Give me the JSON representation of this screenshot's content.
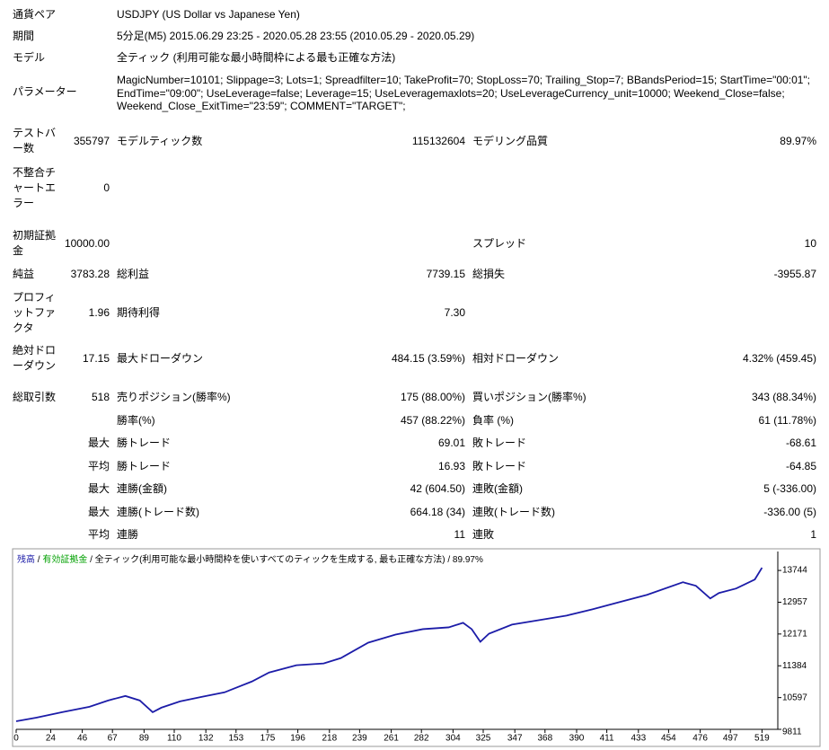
{
  "summary": [
    {
      "label": "通貨ペア",
      "value": "USDJPY (US Dollar vs Japanese Yen)"
    },
    {
      "label": "期間",
      "value": "5分足(M5) 2015.06.29 23:25 - 2020.05.28 23:55 (2010.05.29 - 2020.05.29)"
    },
    {
      "label": "モデル",
      "value": "全ティック (利用可能な最小時間枠による最も正確な方法)"
    },
    {
      "label": "パラメーター",
      "value": "MagicNumber=10101; Slippage=3; Lots=1; Spreadfilter=10; TakeProfit=70; StopLoss=70; Trailing_Stop=7; BBandsPeriod=15; StartTime=\"00:01\"; EndTime=\"09:00\"; UseLeverage=false; Leverage=15; UseLeveragemaxlots=20; UseLeverageCurrency_unit=10000; Weekend_Close=false; Weekend_Close_ExitTime=\"23:59\"; COMMENT=\"TARGET\";"
    }
  ],
  "stats": [
    {
      "label1": "テストバー数",
      "value1": "355797",
      "label2": "モデルティック数",
      "value2": "115132604",
      "label3": "モデリング品質",
      "value3": "89.97%"
    },
    {
      "label1": "不整合チャートエラー",
      "value1": "0"
    },
    {
      "label1": "初期証拠金",
      "value1": "10000.00",
      "label3": "スプレッド",
      "value3": "10"
    },
    {
      "label1": "純益",
      "value1": "3783.28",
      "label2": "総利益",
      "value2": "7739.15",
      "label3": "総損失",
      "value3": "-3955.87"
    },
    {
      "label1": "プロフィットファクタ",
      "value1": "1.96",
      "label2": "期待利得",
      "value2": "7.30"
    },
    {
      "label1": "絶対ドローダウン",
      "value1": "17.15",
      "label2": "最大ドローダウン",
      "value2": "484.15 (3.59%)",
      "label3": "相対ドローダウン",
      "value3": "4.32% (459.45)"
    },
    {
      "label1": "総取引数",
      "value1": "518",
      "label2": "売りポジション(勝率%)",
      "value2": "175 (88.00%)",
      "label3": "買いポジション(勝率%)",
      "value3": "343 (88.34%)"
    },
    {
      "label2": "勝率(%)",
      "value2": "457 (88.22%)",
      "label3": "負率 (%)",
      "value3": "61 (11.78%)"
    },
    {
      "value1": "最大",
      "label2": "勝トレード",
      "value2": "69.01",
      "label3": "敗トレード",
      "value3": "-68.61"
    },
    {
      "value1": "平均",
      "label2": "勝トレード",
      "value2": "16.93",
      "label3": "敗トレード",
      "value3": "-64.85"
    },
    {
      "value1": "最大",
      "label2": "連勝(金額)",
      "value2": "42 (604.50)",
      "label3": "連敗(金額)",
      "value3": "5 (-336.00)"
    },
    {
      "value1": "最大",
      "label2": "連勝(トレード数)",
      "value2": "664.18 (34)",
      "label3": "連敗(トレード数)",
      "value3": "-336.00 (5)"
    },
    {
      "value1": "平均",
      "label2": "連勝",
      "value2": "11",
      "label3": "連敗",
      "value3": "1"
    }
  ],
  "chart_data": {
    "type": "line",
    "separator": "/",
    "equity_name": "有効証拠金",
    "equity_color": "#00a000",
    "subtitle": "/ 全ティック(利用可能な最小時間枠を使いすべてのティックを生成する, 最も正確な方法) / 89.97%",
    "x": [
      0,
      14,
      32,
      51,
      64,
      76,
      86,
      95,
      101,
      114,
      129,
      145,
      164,
      176,
      195,
      214,
      226,
      245,
      264,
      283,
      301,
      311,
      317,
      323,
      329,
      345,
      364,
      383,
      401,
      420,
      439,
      464,
      473,
      483,
      489,
      501,
      514,
      519
    ],
    "series": [
      {
        "name": "残高",
        "color": "#1c1ca8",
        "values": [
          10012,
          10101,
          10235,
          10369,
          10526,
          10637,
          10526,
          10235,
          10347,
          10503,
          10615,
          10727,
          10995,
          11218,
          11397,
          11442,
          11576,
          11956,
          12157,
          12291,
          12336,
          12448,
          12291,
          11978,
          12179,
          12403,
          12515,
          12626,
          12783,
          12962,
          13141,
          13453,
          13364,
          13051,
          13185,
          13297,
          13521,
          13811
        ]
      }
    ],
    "xlim": [
      0,
      530
    ],
    "ylim": [
      9811,
      14213
    ],
    "xticks": [
      0,
      24,
      46,
      67,
      89,
      110,
      132,
      153,
      175,
      196,
      218,
      239,
      261,
      282,
      304,
      325,
      347,
      368,
      390,
      411,
      433,
      454,
      476,
      497,
      519
    ],
    "yticks": [
      9811,
      10597,
      11384,
      12171,
      12957,
      13744
    ]
  }
}
